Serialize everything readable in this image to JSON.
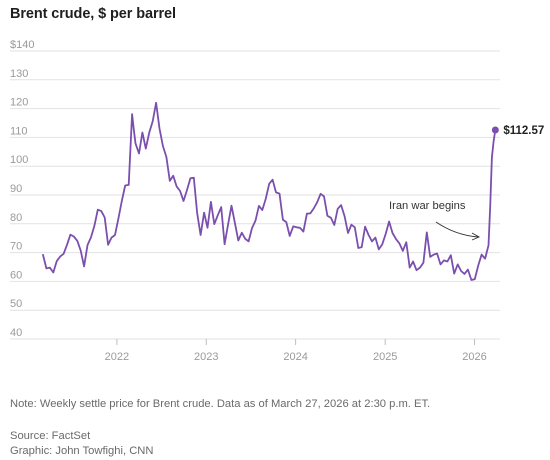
{
  "title": "Brent crude, $ per barrel",
  "note": "Note: Weekly settle price for Brent crude. Data as of March 27, 2026 at 2:30 p.m. ET.",
  "source": "Source: FactSet",
  "graphic": "Graphic: John Towfighi, CNN",
  "colors": {
    "line": "#7a4fae",
    "grid": "#e2e2e2",
    "axis_text": "#9a9a9a",
    "annotation": "#333333"
  },
  "chart_data": {
    "type": "line",
    "ylim": [
      40,
      140
    ],
    "y_ticks": [
      "$140",
      "130",
      "120",
      "110",
      "100",
      "90",
      "80",
      "70",
      "60",
      "50",
      "40"
    ],
    "y_tick_values": [
      140,
      130,
      120,
      110,
      100,
      90,
      80,
      70,
      60,
      50,
      40
    ],
    "x_ticks": [
      "2022",
      "2023",
      "2024",
      "2025",
      "2026"
    ],
    "x_tick_values": [
      "2022-01-01",
      "2023-01-01",
      "2024-01-01",
      "2025-01-01",
      "2026-01-01"
    ],
    "xlim": [
      "2021-03-05",
      "2026-04-15"
    ],
    "grid": "horizontal",
    "end_label": "$112.57",
    "end_value": 112.57,
    "annotation": "Iran war begins",
    "series": [
      {
        "x": [
          "2021-03-05",
          "2021-03-19",
          "2021-04-02",
          "2021-04-16",
          "2021-04-30",
          "2021-05-14",
          "2021-05-28",
          "2021-06-11",
          "2021-06-25",
          "2021-07-09",
          "2021-07-23",
          "2021-08-06",
          "2021-08-20",
          "2021-09-03",
          "2021-09-17",
          "2021-10-01",
          "2021-10-15",
          "2021-10-29",
          "2021-11-12",
          "2021-11-26",
          "2021-12-10",
          "2021-12-24",
          "2022-01-07",
          "2022-01-21",
          "2022-02-04",
          "2022-02-18",
          "2022-03-04",
          "2022-03-11",
          "2022-03-18",
          "2022-04-01",
          "2022-04-15",
          "2022-04-29",
          "2022-05-13",
          "2022-05-27",
          "2022-06-10",
          "2022-06-24",
          "2022-07-08",
          "2022-07-22",
          "2022-08-05",
          "2022-08-19",
          "2022-09-02",
          "2022-09-16",
          "2022-09-30",
          "2022-10-14",
          "2022-10-28",
          "2022-11-11",
          "2022-11-25",
          "2022-12-09",
          "2022-12-23",
          "2023-01-06",
          "2023-01-20",
          "2023-02-03",
          "2023-02-17",
          "2023-03-03",
          "2023-03-17",
          "2023-03-31",
          "2023-04-14",
          "2023-04-28",
          "2023-05-12",
          "2023-05-26",
          "2023-06-09",
          "2023-06-23",
          "2023-07-07",
          "2023-07-21",
          "2023-08-04",
          "2023-08-18",
          "2023-09-01",
          "2023-09-15",
          "2023-09-29",
          "2023-10-13",
          "2023-10-27",
          "2023-11-10",
          "2023-11-24",
          "2023-12-08",
          "2023-12-22",
          "2024-01-05",
          "2024-01-19",
          "2024-02-02",
          "2024-02-16",
          "2024-03-01",
          "2024-03-15",
          "2024-03-29",
          "2024-04-12",
          "2024-04-26",
          "2024-05-10",
          "2024-05-24",
          "2024-06-07",
          "2024-06-21",
          "2024-07-05",
          "2024-07-19",
          "2024-08-02",
          "2024-08-16",
          "2024-08-30",
          "2024-09-13",
          "2024-09-27",
          "2024-10-11",
          "2024-10-25",
          "2024-11-08",
          "2024-11-22",
          "2024-12-06",
          "2024-12-20",
          "2025-01-03",
          "2025-01-17",
          "2025-01-31",
          "2025-02-14",
          "2025-02-28",
          "2025-03-14",
          "2025-03-28",
          "2025-04-11",
          "2025-04-25",
          "2025-05-09",
          "2025-05-23",
          "2025-06-06",
          "2025-06-20",
          "2025-07-04",
          "2025-07-18",
          "2025-08-01",
          "2025-08-15",
          "2025-08-29",
          "2025-09-12",
          "2025-09-26",
          "2025-10-10",
          "2025-10-24",
          "2025-11-07",
          "2025-11-21",
          "2025-12-05",
          "2025-12-19",
          "2026-01-02",
          "2026-01-16",
          "2026-01-30",
          "2026-02-13",
          "2026-02-27",
          "2026-03-06",
          "2026-03-13",
          "2026-03-20",
          "2026-03-27"
        ],
        "values": [
          69.2,
          64.5,
          64.8,
          63.1,
          67.0,
          68.6,
          69.6,
          72.7,
          76.2,
          75.6,
          74.1,
          70.7,
          65.2,
          72.6,
          75.3,
          79.3,
          84.9,
          84.4,
          82.2,
          72.7,
          75.2,
          76.1,
          81.8,
          87.9,
          93.3,
          93.5,
          118.1,
          112.7,
          107.9,
          104.4,
          111.7,
          106.1,
          111.6,
          115.6,
          122.0,
          113.1,
          107.0,
          103.2,
          94.9,
          96.7,
          93.0,
          91.4,
          87.9,
          91.6,
          95.8,
          96.0,
          83.6,
          76.1,
          83.9,
          78.6,
          87.6,
          79.9,
          83.0,
          85.8,
          72.9,
          79.8,
          86.3,
          80.3,
          74.2,
          76.9,
          74.8,
          73.9,
          78.5,
          81.1,
          86.2,
          84.8,
          88.6,
          93.9,
          95.3,
          90.9,
          90.5,
          81.4,
          80.6,
          75.8,
          79.1,
          78.8,
          78.6,
          77.3,
          83.5,
          83.6,
          85.3,
          87.5,
          90.4,
          89.5,
          82.8,
          82.1,
          79.6,
          85.2,
          86.5,
          82.6,
          76.8,
          79.7,
          78.8,
          71.6,
          71.9,
          79.0,
          76.1,
          73.9,
          75.2,
          71.1,
          72.9,
          76.5,
          80.8,
          76.8,
          74.7,
          73.2,
          70.6,
          73.6,
          64.8,
          66.9,
          63.9,
          64.8,
          66.5,
          77.0,
          68.5,
          69.3,
          69.7,
          65.9,
          67.3,
          66.9,
          69.1,
          62.7,
          65.9,
          63.6,
          62.6,
          64.1,
          60.5,
          60.8,
          65.5,
          69.3,
          67.9,
          72.5,
          86.0,
          103.1,
          108.6,
          112.57
        ]
      }
    ]
  }
}
